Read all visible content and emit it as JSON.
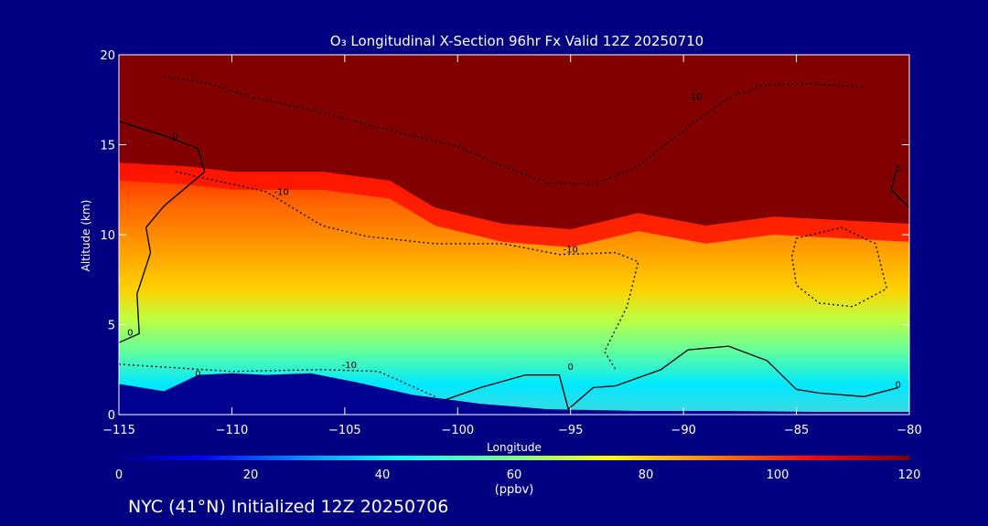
{
  "chart_data": {
    "type": "heatmap",
    "title": "O₃ Longitudinal X-Section 96hr  Fx Valid 12Z 20250710",
    "xlabel": "Longitude",
    "ylabel": "Altitude (km)",
    "xlim": [
      -115,
      -80
    ],
    "ylim": [
      0,
      20
    ],
    "x_ticks": [
      -115,
      -110,
      -105,
      -100,
      -95,
      -90,
      -85,
      -80
    ],
    "x_tick_labels": [
      "−115",
      "−110",
      "−105",
      "−100",
      "−95",
      "−90",
      "−85",
      "−80"
    ],
    "y_ticks": [
      0,
      5,
      10,
      15,
      20
    ],
    "y_tick_labels": [
      "0",
      "5",
      "10",
      "15",
      "20"
    ],
    "colorbar": {
      "min": 0,
      "max": 120,
      "ticks": [
        0,
        20,
        40,
        60,
        80,
        100,
        120
      ],
      "tick_labels": [
        "0",
        "20",
        "40",
        "60",
        "80",
        "100",
        "120"
      ],
      "unit": "(ppbv)"
    },
    "contour_labels": [
      {
        "text": "-10",
        "lon": -89.5,
        "alt": 17.5
      },
      {
        "text": "-10",
        "lon": -107.8,
        "alt": 12.2
      },
      {
        "text": "-10",
        "lon": -95.0,
        "alt": 9.0
      },
      {
        "text": "-10",
        "lon": -104.8,
        "alt": 2.6
      },
      {
        "text": "0",
        "lon": -112.5,
        "alt": 15.3
      },
      {
        "text": "0",
        "lon": -114.5,
        "alt": 4.4
      },
      {
        "text": "0",
        "lon": -111.5,
        "alt": 2.1
      },
      {
        "text": "0",
        "lon": -95.0,
        "alt": 2.5
      },
      {
        "text": "0",
        "lon": -80.5,
        "alt": 13.5
      },
      {
        "text": "0",
        "lon": -80.5,
        "alt": 1.5
      }
    ],
    "bands": [
      {
        "lon": -115,
        "top": 14.0,
        "ozone_surface": 55
      },
      {
        "lon": -112,
        "top": 13.8,
        "ozone_surface": 58
      },
      {
        "lon": -110,
        "top": 13.5,
        "ozone_surface": 60
      },
      {
        "lon": -106,
        "top": 13.5,
        "ozone_surface": 52
      },
      {
        "lon": -103,
        "top": 13.0,
        "ozone_surface": 50
      },
      {
        "lon": -101,
        "top": 11.5,
        "ozone_surface": 50
      },
      {
        "lon": -98,
        "top": 10.6,
        "ozone_surface": 55
      },
      {
        "lon": -95,
        "top": 10.3,
        "ozone_surface": 52
      },
      {
        "lon": -92,
        "top": 11.2,
        "ozone_surface": 50
      },
      {
        "lon": -89,
        "top": 10.5,
        "ozone_surface": 50
      },
      {
        "lon": -86,
        "top": 11.0,
        "ozone_surface": 55
      },
      {
        "lon": -80,
        "top": 10.6,
        "ozone_surface": 58
      }
    ]
  },
  "footer": {
    "caption": "NYC (41°N) Initialized 12Z 20250706"
  },
  "colors": {
    "background": "#000080",
    "text": "#ffffff",
    "contour": "#000000"
  }
}
